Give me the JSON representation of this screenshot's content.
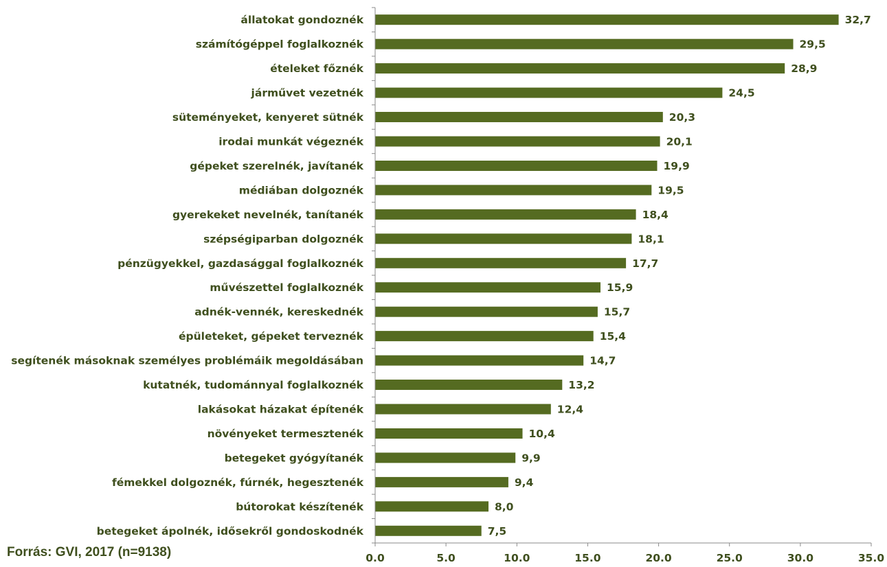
{
  "source_note": "Forrás: GVI, 2017 (n=9138)",
  "colors": {
    "bar": "#556b21",
    "text": "#3f4f1e",
    "axis": "#8a8a8a"
  },
  "chart_data": {
    "type": "bar",
    "orientation": "horizontal",
    "categories": [
      "állatokat gondoznék",
      "számítógéppel foglalkoznék",
      "ételeket főznék",
      "járművet vezetnék",
      "süteményeket, kenyeret sütnék",
      "irodai munkát végeznék",
      "gépeket szerelnék, javítanék",
      "médiában dolgoznék",
      "gyerekeket nevelnék, tanítanék",
      "szépségiparban dolgoznék",
      "pénzügyekkel, gazdasággal foglalkoznék",
      "művészettel foglalkoznék",
      "adnék-vennék, kereskednék",
      "épületeket, gépeket terveznék",
      "segítenék másoknak személyes problémáik megoldásában",
      "kutatnék, tudománnyal foglalkoznék",
      "lakásokat házakat építenék",
      "növényeket termesztenék",
      "betegeket gyógyítanék",
      "fémekkel dolgoznék, fúrnék, hegesztenék",
      "bútorokat készítenék",
      "betegeket ápolnék, idősekről gondoskodnék"
    ],
    "values": [
      32.7,
      29.5,
      28.9,
      24.5,
      20.3,
      20.1,
      19.9,
      19.5,
      18.4,
      18.1,
      17.7,
      15.9,
      15.7,
      15.4,
      14.7,
      13.2,
      12.4,
      10.4,
      9.9,
      9.4,
      8.0,
      7.5
    ],
    "value_labels": [
      "32,7",
      "29,5",
      "28,9",
      "24,5",
      "20,3",
      "20,1",
      "19,9",
      "19,5",
      "18,4",
      "18,1",
      "17,7",
      "15,9",
      "15,7",
      "15,4",
      "14,7",
      "13,2",
      "12,4",
      "10,4",
      "9,9",
      "9,4",
      "8,0",
      "7,5"
    ],
    "xlim": [
      0,
      35
    ],
    "xticks": [
      0,
      5,
      10,
      15,
      20,
      25,
      30,
      35
    ],
    "xtick_labels": [
      "0.0",
      "5.0",
      "10.0",
      "15.0",
      "20.0",
      "25.0",
      "30.0",
      "35.0"
    ],
    "grid": false,
    "legend": "none"
  }
}
